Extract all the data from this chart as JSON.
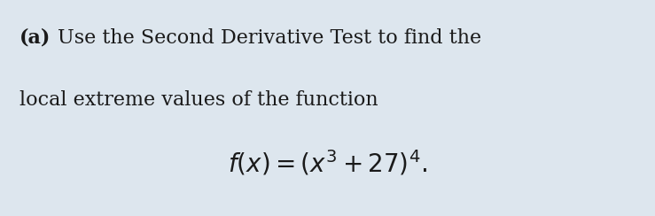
{
  "background_color": "#dde6ee",
  "bold_label": "(a)",
  "text_line1": "Use the Second Derivative Test to find the",
  "text_line2": "local extreme values of the function",
  "formula": "$f(x) = (x^3 + 27)^4.$",
  "text_color": "#1a1a1a",
  "bold_fontsize": 16,
  "text_fontsize": 16,
  "formula_fontsize": 20,
  "fig_width": 7.39,
  "fig_height": 2.44
}
